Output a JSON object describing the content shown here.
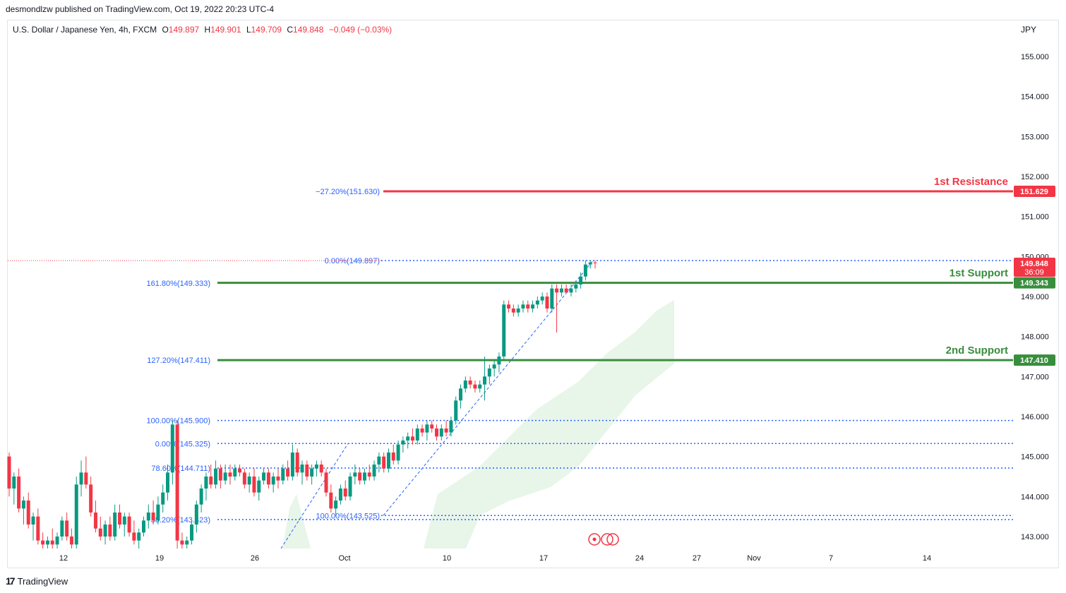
{
  "header": {
    "publisher": "desmondlzw published on TradingView.com, Oct 19, 2022 20:23 UTC-4"
  },
  "legend": {
    "symbol": "U.S. Dollar / Japanese Yen, 4h, FXCM",
    "open_key": "O",
    "open": "149.897",
    "high_key": "H",
    "high": "149.901",
    "low_key": "L",
    "low": "149.709",
    "close_key": "C",
    "close": "149.848",
    "change": "−0.049 (−0.03%)"
  },
  "currency": "JPY",
  "footer": {
    "logo": "17",
    "brand": "TradingView"
  },
  "colors": {
    "up": "#089981",
    "down": "#f23645",
    "resistance": "#f23645",
    "support": "#388e3c",
    "fib": "#2962ff",
    "fib_text": "#2962ff",
    "cloud": "#e8f5e9"
  },
  "chart_data": {
    "type": "candlestick",
    "price_axis": [
      "155.000",
      "154.000",
      "153.000",
      "152.000",
      "151.000",
      "150.000",
      "149.000",
      "148.000",
      "147.000",
      "146.000",
      "145.000",
      "144.000",
      "143.000"
    ],
    "time_axis": [
      "12",
      "19",
      "26",
      "Oct",
      "10",
      "17",
      "24",
      "27",
      "Nov",
      "7",
      "14"
    ],
    "ylim": [
      142.7,
      155.9
    ],
    "last_price": {
      "value": "149.848",
      "countdown": "36:09"
    },
    "levels": [
      {
        "label": "1st Resistance",
        "value": 151.629,
        "tag": "151.629",
        "kind": "resistance"
      },
      {
        "label": "1st Support",
        "value": 149.343,
        "tag": "149.343",
        "kind": "support"
      },
      {
        "label": "2nd Support",
        "value": 147.41,
        "tag": "147.410",
        "kind": "support"
      }
    ],
    "fib_levels": [
      {
        "text": "−27.20%(151.630)",
        "value": 151.63
      },
      {
        "text": "0.00%(149.897)",
        "value": 149.897
      },
      {
        "text": "161.80%(149.333)",
        "value": 149.333
      },
      {
        "text": "127.20%(147.411)",
        "value": 147.411
      },
      {
        "text": "100.00%(145.900)",
        "value": 145.9
      },
      {
        "text": "0.00%(145.325)",
        "value": 145.325
      },
      {
        "text": "78.60%(144.711)",
        "value": 144.711
      },
      {
        "text": "100.00%(143.525)",
        "value": 143.525
      },
      {
        "text": "38.20%(143.423)",
        "value": 143.423
      }
    ],
    "candles": [
      {
        "o": 145.0,
        "h": 145.1,
        "l": 144.0,
        "c": 144.2
      },
      {
        "o": 144.2,
        "h": 144.6,
        "l": 143.8,
        "c": 144.5
      },
      {
        "o": 144.5,
        "h": 144.7,
        "l": 143.6,
        "c": 143.7
      },
      {
        "o": 143.7,
        "h": 144.0,
        "l": 143.3,
        "c": 143.9
      },
      {
        "o": 143.9,
        "h": 144.1,
        "l": 143.2,
        "c": 143.3
      },
      {
        "o": 143.3,
        "h": 143.6,
        "l": 142.9,
        "c": 143.5
      },
      {
        "o": 143.5,
        "h": 143.7,
        "l": 142.8,
        "c": 142.9
      },
      {
        "o": 142.9,
        "h": 143.1,
        "l": 142.7,
        "c": 142.8
      },
      {
        "o": 142.8,
        "h": 143.0,
        "l": 142.7,
        "c": 142.9
      },
      {
        "o": 142.9,
        "h": 143.2,
        "l": 142.7,
        "c": 142.8
      },
      {
        "o": 142.8,
        "h": 143.1,
        "l": 142.7,
        "c": 143.0
      },
      {
        "o": 143.0,
        "h": 143.5,
        "l": 142.9,
        "c": 143.4
      },
      {
        "o": 143.4,
        "h": 143.6,
        "l": 142.9,
        "c": 143.0
      },
      {
        "o": 143.0,
        "h": 143.2,
        "l": 142.7,
        "c": 142.8
      },
      {
        "o": 142.8,
        "h": 144.5,
        "l": 142.7,
        "c": 144.3
      },
      {
        "o": 144.3,
        "h": 144.9,
        "l": 144.0,
        "c": 144.6
      },
      {
        "o": 144.6,
        "h": 145.0,
        "l": 144.2,
        "c": 144.3
      },
      {
        "o": 144.3,
        "h": 144.5,
        "l": 143.5,
        "c": 143.6
      },
      {
        "o": 143.6,
        "h": 143.9,
        "l": 143.1,
        "c": 143.2
      },
      {
        "o": 143.2,
        "h": 143.5,
        "l": 142.9,
        "c": 143.0
      },
      {
        "o": 143.0,
        "h": 143.4,
        "l": 142.8,
        "c": 143.3
      },
      {
        "o": 143.3,
        "h": 143.5,
        "l": 142.9,
        "c": 143.0
      },
      {
        "o": 143.0,
        "h": 143.8,
        "l": 142.9,
        "c": 143.6
      },
      {
        "o": 143.6,
        "h": 143.8,
        "l": 143.2,
        "c": 143.3
      },
      {
        "o": 143.3,
        "h": 143.6,
        "l": 143.0,
        "c": 143.5
      },
      {
        "o": 143.5,
        "h": 143.6,
        "l": 143.0,
        "c": 143.1
      },
      {
        "o": 143.1,
        "h": 143.4,
        "l": 142.8,
        "c": 142.9
      },
      {
        "o": 142.9,
        "h": 143.2,
        "l": 142.7,
        "c": 143.1
      },
      {
        "o": 143.1,
        "h": 143.5,
        "l": 143.0,
        "c": 143.4
      },
      {
        "o": 143.4,
        "h": 143.8,
        "l": 143.2,
        "c": 143.6
      },
      {
        "o": 143.6,
        "h": 143.9,
        "l": 143.3,
        "c": 143.4
      },
      {
        "o": 143.4,
        "h": 144.0,
        "l": 143.3,
        "c": 143.8
      },
      {
        "o": 143.8,
        "h": 144.3,
        "l": 143.6,
        "c": 144.1
      },
      {
        "o": 144.1,
        "h": 144.8,
        "l": 143.9,
        "c": 144.6
      },
      {
        "o": 144.6,
        "h": 145.9,
        "l": 144.3,
        "c": 145.8
      },
      {
        "o": 145.8,
        "h": 145.9,
        "l": 142.7,
        "c": 142.9
      },
      {
        "o": 142.9,
        "h": 143.1,
        "l": 142.7,
        "c": 142.8
      },
      {
        "o": 142.8,
        "h": 143.0,
        "l": 142.7,
        "c": 142.9
      },
      {
        "o": 142.9,
        "h": 143.4,
        "l": 142.8,
        "c": 143.3
      },
      {
        "o": 143.3,
        "h": 143.9,
        "l": 143.1,
        "c": 143.8
      },
      {
        "o": 143.8,
        "h": 144.3,
        "l": 143.6,
        "c": 144.2
      },
      {
        "o": 144.2,
        "h": 144.6,
        "l": 143.9,
        "c": 144.5
      },
      {
        "o": 144.5,
        "h": 144.8,
        "l": 144.2,
        "c": 144.3
      },
      {
        "o": 144.3,
        "h": 144.9,
        "l": 144.2,
        "c": 144.7
      },
      {
        "o": 144.7,
        "h": 144.8,
        "l": 144.2,
        "c": 144.4
      },
      {
        "o": 144.4,
        "h": 144.8,
        "l": 144.3,
        "c": 144.6
      },
      {
        "o": 144.6,
        "h": 144.8,
        "l": 144.3,
        "c": 144.5
      },
      {
        "o": 144.5,
        "h": 144.8,
        "l": 144.4,
        "c": 144.7
      },
      {
        "o": 144.7,
        "h": 144.8,
        "l": 144.5,
        "c": 144.6
      },
      {
        "o": 144.6,
        "h": 144.7,
        "l": 144.2,
        "c": 144.3
      },
      {
        "o": 144.3,
        "h": 144.6,
        "l": 144.1,
        "c": 144.5
      },
      {
        "o": 144.5,
        "h": 144.7,
        "l": 144.0,
        "c": 144.1
      },
      {
        "o": 144.1,
        "h": 144.5,
        "l": 143.9,
        "c": 144.4
      },
      {
        "o": 144.4,
        "h": 144.7,
        "l": 144.3,
        "c": 144.6
      },
      {
        "o": 144.6,
        "h": 144.7,
        "l": 144.2,
        "c": 144.3
      },
      {
        "o": 144.3,
        "h": 144.6,
        "l": 144.1,
        "c": 144.5
      },
      {
        "o": 144.5,
        "h": 144.7,
        "l": 144.2,
        "c": 144.4
      },
      {
        "o": 144.4,
        "h": 144.8,
        "l": 144.3,
        "c": 144.7
      },
      {
        "o": 144.7,
        "h": 144.9,
        "l": 144.4,
        "c": 144.5
      },
      {
        "o": 144.5,
        "h": 145.3,
        "l": 144.4,
        "c": 145.1
      },
      {
        "o": 145.1,
        "h": 145.2,
        "l": 144.5,
        "c": 144.6
      },
      {
        "o": 144.6,
        "h": 144.9,
        "l": 144.3,
        "c": 144.8
      },
      {
        "o": 144.8,
        "h": 144.9,
        "l": 144.4,
        "c": 144.5
      },
      {
        "o": 144.5,
        "h": 144.8,
        "l": 144.3,
        "c": 144.7
      },
      {
        "o": 144.7,
        "h": 144.9,
        "l": 144.5,
        "c": 144.8
      },
      {
        "o": 144.8,
        "h": 144.9,
        "l": 144.5,
        "c": 144.6
      },
      {
        "o": 144.6,
        "h": 144.7,
        "l": 144.0,
        "c": 144.1
      },
      {
        "o": 144.1,
        "h": 144.3,
        "l": 143.6,
        "c": 143.7
      },
      {
        "o": 143.7,
        "h": 144.0,
        "l": 143.5,
        "c": 143.9
      },
      {
        "o": 143.9,
        "h": 144.3,
        "l": 143.8,
        "c": 144.2
      },
      {
        "o": 144.2,
        "h": 144.4,
        "l": 143.9,
        "c": 144.0
      },
      {
        "o": 144.0,
        "h": 144.6,
        "l": 143.9,
        "c": 144.5
      },
      {
        "o": 144.5,
        "h": 144.8,
        "l": 144.3,
        "c": 144.6
      },
      {
        "o": 144.6,
        "h": 144.7,
        "l": 144.3,
        "c": 144.4
      },
      {
        "o": 144.4,
        "h": 144.7,
        "l": 144.3,
        "c": 144.6
      },
      {
        "o": 144.6,
        "h": 144.8,
        "l": 144.4,
        "c": 144.5
      },
      {
        "o": 144.5,
        "h": 144.9,
        "l": 144.4,
        "c": 144.8
      },
      {
        "o": 144.8,
        "h": 145.1,
        "l": 144.6,
        "c": 145.0
      },
      {
        "o": 145.0,
        "h": 145.1,
        "l": 144.6,
        "c": 144.7
      },
      {
        "o": 144.7,
        "h": 145.2,
        "l": 144.6,
        "c": 145.1
      },
      {
        "o": 145.1,
        "h": 145.3,
        "l": 144.8,
        "c": 144.9
      },
      {
        "o": 144.9,
        "h": 145.4,
        "l": 144.8,
        "c": 145.3
      },
      {
        "o": 145.3,
        "h": 145.5,
        "l": 145.1,
        "c": 145.4
      },
      {
        "o": 145.4,
        "h": 145.6,
        "l": 145.2,
        "c": 145.5
      },
      {
        "o": 145.5,
        "h": 145.7,
        "l": 145.3,
        "c": 145.4
      },
      {
        "o": 145.4,
        "h": 145.8,
        "l": 145.3,
        "c": 145.7
      },
      {
        "o": 145.7,
        "h": 145.8,
        "l": 145.5,
        "c": 145.6
      },
      {
        "o": 145.6,
        "h": 145.9,
        "l": 145.4,
        "c": 145.8
      },
      {
        "o": 145.8,
        "h": 145.9,
        "l": 145.6,
        "c": 145.7
      },
      {
        "o": 145.7,
        "h": 145.8,
        "l": 145.4,
        "c": 145.5
      },
      {
        "o": 145.5,
        "h": 145.8,
        "l": 145.4,
        "c": 145.7
      },
      {
        "o": 145.7,
        "h": 145.9,
        "l": 145.5,
        "c": 145.6
      },
      {
        "o": 145.6,
        "h": 146.0,
        "l": 145.5,
        "c": 145.9
      },
      {
        "o": 145.9,
        "h": 146.5,
        "l": 145.8,
        "c": 146.4
      },
      {
        "o": 146.4,
        "h": 146.8,
        "l": 146.2,
        "c": 146.7
      },
      {
        "o": 146.7,
        "h": 147.0,
        "l": 146.6,
        "c": 146.9
      },
      {
        "o": 146.9,
        "h": 147.0,
        "l": 146.7,
        "c": 146.8
      },
      {
        "o": 146.8,
        "h": 146.9,
        "l": 146.6,
        "c": 146.7
      },
      {
        "o": 146.7,
        "h": 146.9,
        "l": 146.6,
        "c": 146.8
      },
      {
        "o": 146.8,
        "h": 147.5,
        "l": 146.4,
        "c": 147.0
      },
      {
        "o": 147.0,
        "h": 147.3,
        "l": 146.8,
        "c": 147.2
      },
      {
        "o": 147.2,
        "h": 147.4,
        "l": 147.0,
        "c": 147.3
      },
      {
        "o": 147.3,
        "h": 147.6,
        "l": 147.1,
        "c": 147.5
      },
      {
        "o": 147.5,
        "h": 148.9,
        "l": 147.4,
        "c": 148.8
      },
      {
        "o": 148.8,
        "h": 148.9,
        "l": 148.6,
        "c": 148.7
      },
      {
        "o": 148.7,
        "h": 148.8,
        "l": 148.5,
        "c": 148.6
      },
      {
        "o": 148.6,
        "h": 148.8,
        "l": 148.5,
        "c": 148.7
      },
      {
        "o": 148.7,
        "h": 148.9,
        "l": 148.6,
        "c": 148.8
      },
      {
        "o": 148.8,
        "h": 148.9,
        "l": 148.6,
        "c": 148.7
      },
      {
        "o": 148.7,
        "h": 148.9,
        "l": 148.6,
        "c": 148.8
      },
      {
        "o": 148.8,
        "h": 149.0,
        "l": 148.7,
        "c": 148.9
      },
      {
        "o": 148.9,
        "h": 149.1,
        "l": 148.8,
        "c": 149.0
      },
      {
        "o": 149.0,
        "h": 149.1,
        "l": 148.6,
        "c": 148.7
      },
      {
        "o": 148.7,
        "h": 149.3,
        "l": 148.6,
        "c": 149.2
      },
      {
        "o": 149.2,
        "h": 149.3,
        "l": 148.1,
        "c": 149.1
      },
      {
        "o": 149.1,
        "h": 149.3,
        "l": 149.0,
        "c": 149.2
      },
      {
        "o": 149.2,
        "h": 149.3,
        "l": 149.1,
        "c": 149.1
      },
      {
        "o": 149.1,
        "h": 149.3,
        "l": 149.0,
        "c": 149.2
      },
      {
        "o": 149.2,
        "h": 149.4,
        "l": 149.1,
        "c": 149.3
      },
      {
        "o": 149.3,
        "h": 149.6,
        "l": 149.2,
        "c": 149.5
      },
      {
        "o": 149.5,
        "h": 149.9,
        "l": 149.4,
        "c": 149.8
      },
      {
        "o": 149.8,
        "h": 149.9,
        "l": 149.7,
        "c": 149.85
      },
      {
        "o": 149.85,
        "h": 149.9,
        "l": 149.7,
        "c": 149.848
      }
    ]
  }
}
